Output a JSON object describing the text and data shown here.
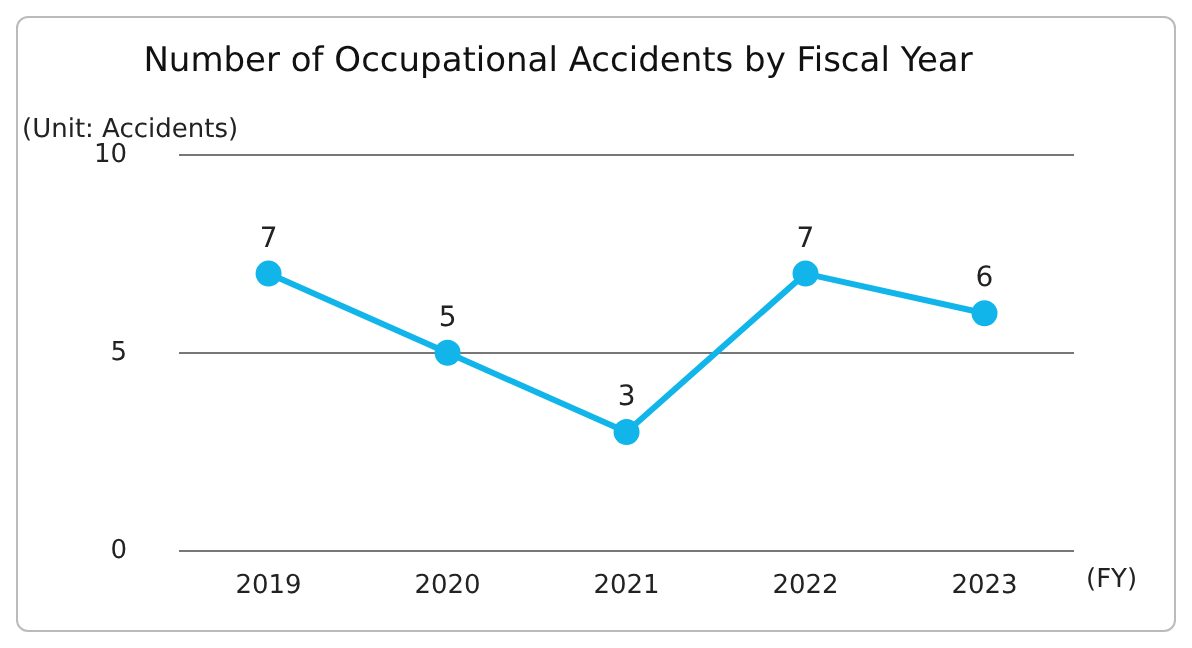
{
  "chart_data": {
    "type": "line",
    "title": "Number of Occupational Accidents by Fiscal Year",
    "ylabel": "(Unit: Accidents)",
    "xlabel": "(FY)",
    "categories": [
      "2019",
      "2020",
      "2021",
      "2022",
      "2023"
    ],
    "series": [
      {
        "color": "#12b5ea",
        "values": [
          7,
          5,
          3,
          7,
          6
        ]
      }
    ],
    "ylim": [
      0,
      10
    ],
    "yticks": [
      0,
      5,
      10
    ],
    "grid": "y",
    "marker": "circle",
    "line_style": "solid",
    "data_labels": true,
    "legend": false
  }
}
